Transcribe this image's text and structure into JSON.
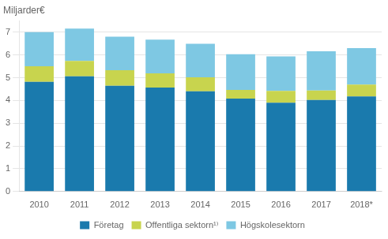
{
  "chart_data": {
    "type": "bar",
    "annotation": "Miljarder€",
    "categories": [
      "2010",
      "2011",
      "2012",
      "2013",
      "2014",
      "2015",
      "2016",
      "2017",
      "2018*"
    ],
    "series": [
      {
        "name": "Företag",
        "color": "#1a7aad",
        "values": [
          4.82,
          5.06,
          4.65,
          4.57,
          4.4,
          4.08,
          3.9,
          4.02,
          4.18
        ]
      },
      {
        "name": "Offentliga sektorn¹⁾",
        "color": "#c8d44e",
        "values": [
          0.68,
          0.68,
          0.68,
          0.62,
          0.62,
          0.38,
          0.52,
          0.42,
          0.52
        ]
      },
      {
        "name": "Högskolesektorn",
        "color": "#7ec8e3",
        "values": [
          1.5,
          1.42,
          1.47,
          1.48,
          1.47,
          1.57,
          1.52,
          1.72,
          1.6
        ]
      }
    ],
    "stacked": true,
    "ylim": [
      0,
      7.5
    ],
    "yticks": [
      0,
      1,
      2,
      3,
      4,
      5,
      6,
      7
    ],
    "grid": true,
    "legend": "bottom"
  }
}
